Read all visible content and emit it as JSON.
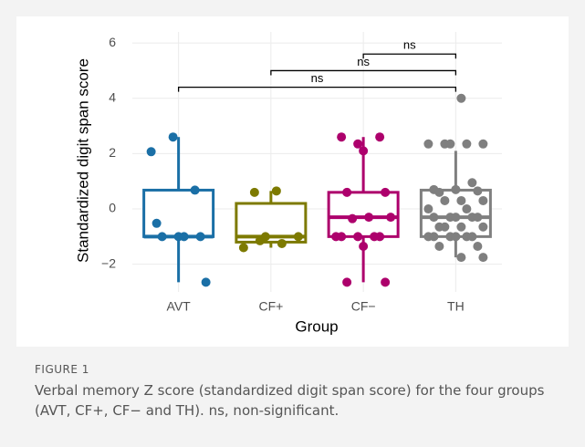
{
  "chart_data": {
    "type": "box",
    "y_label": "Standardized digit span score",
    "x_label": "Group",
    "categories": [
      "AVT",
      "CF+",
      "CF−",
      "TH"
    ],
    "ylim": [
      -3,
      6.4
    ],
    "yticks": [
      {
        "value": -2,
        "label": "−2"
      },
      0,
      2,
      4,
      6
    ],
    "grid": true,
    "boxes": [
      {
        "color": "#1a6fa6",
        "min": -2.65,
        "q1": -1.0,
        "median": -1.0,
        "q3": 0.68,
        "max": 2.6,
        "points": [
          2.07,
          2.6,
          0.68,
          -0.52,
          -1.0,
          -1.0,
          -1.0,
          -1.0,
          -2.65
        ]
      },
      {
        "color": "#7d7a00",
        "min": -1.4,
        "q1": -1.2,
        "median": -1.0,
        "q3": 0.2,
        "max": 0.65,
        "points": [
          0.6,
          0.65,
          -1.0,
          -1.15,
          -1.25,
          -1.4,
          -1.0
        ]
      },
      {
        "color": "#ad006c",
        "min": -2.65,
        "q1": -1.0,
        "median": -0.3,
        "q3": 0.6,
        "max": 2.6,
        "points": [
          2.35,
          2.6,
          2.6,
          2.1,
          0.6,
          0.6,
          -0.3,
          -0.3,
          -0.35,
          -1.0,
          -1.0,
          -1.0,
          -1.0,
          -1.0,
          -1.35,
          -2.65,
          -2.65
        ]
      },
      {
        "color": "#7f7f7f",
        "min": -1.75,
        "q1": -1.0,
        "median": -0.3,
        "q3": 0.68,
        "max": 2.1,
        "points": [
          4.0,
          2.35,
          2.35,
          2.35,
          2.35,
          2.35,
          0.95,
          0.7,
          0.7,
          0.65,
          0.6,
          0.3,
          0.3,
          0.3,
          0.0,
          0.0,
          -0.3,
          -0.3,
          -0.3,
          -0.3,
          -0.3,
          -0.65,
          -0.65,
          -0.65,
          -0.65,
          -1.0,
          -1.0,
          -1.0,
          -1.0,
          -1.0,
          -1.0,
          -1.35,
          -1.35,
          -1.75,
          -1.75
        ]
      }
    ],
    "comparisons": [
      {
        "from": "AVT",
        "to": "TH",
        "y": 4.4,
        "label": "ns"
      },
      {
        "from": "CF+",
        "to": "TH",
        "y": 5.0,
        "label": "ns"
      },
      {
        "from": "CF−",
        "to": "TH",
        "y": 5.6,
        "label": "ns"
      }
    ]
  },
  "caption": {
    "label": "FIGURE 1",
    "text": "Verbal memory Z score (standardized digit span score) for the four groups (AVT, CF+, CF− and TH). ns, non-significant."
  }
}
